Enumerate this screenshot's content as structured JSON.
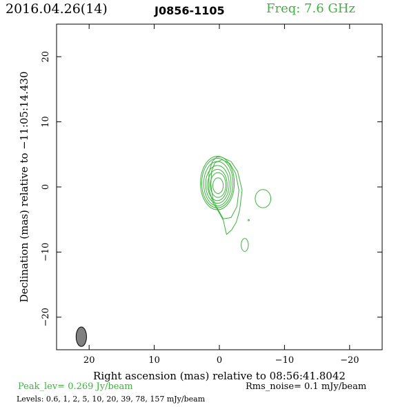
{
  "header": {
    "date": "2016.04.26(14)",
    "source": "J0856-1105",
    "freq": "Freq: 7.6 GHz"
  },
  "footer": {
    "peak": "Peak_lev=  0.269 Jy/beam",
    "rms": "Rms_noise=  0.1 mJy/beam",
    "levels": "Levels: 0.6,   1,   2,   5,  10,  20,  39,  78, 157 mJy/beam"
  },
  "colors": {
    "contour": "#3cb33c",
    "beam": "#808080",
    "axis": "#000000"
  },
  "chart_data": {
    "type": "contour",
    "title": "J0856-1105",
    "xlabel": "Right ascension (mas) relative to 08:56:41.8042",
    "ylabel": "Declination (mas) relative to −11:05:14.430",
    "xlim": [
      25,
      -25
    ],
    "ylim": [
      -25,
      25
    ],
    "xticks": [
      20,
      10,
      0,
      -10,
      -20
    ],
    "yticks": [
      20,
      10,
      0,
      -10,
      -20
    ],
    "xtick_labels": [
      "20",
      "10",
      "0",
      "−10",
      "−20"
    ],
    "ytick_labels": [
      "20",
      "10",
      "0",
      "−10",
      "−20"
    ],
    "contour_levels_mJy": [
      0.6,
      1,
      2,
      5,
      10,
      20,
      39,
      78,
      157
    ],
    "peak_Jy_per_beam": 0.269,
    "rms_mJy_per_beam": 0.1,
    "core_contours": [
      {
        "cx": 0.2,
        "cy": 0.2,
        "rx": 0.8,
        "ry": 1.2
      },
      {
        "cx": 0.2,
        "cy": 0.3,
        "rx": 1.2,
        "ry": 1.9
      },
      {
        "cx": 0.3,
        "cy": 0.3,
        "rx": 1.5,
        "ry": 2.4
      },
      {
        "cx": 0.3,
        "cy": 0.4,
        "rx": 1.8,
        "ry": 2.9
      },
      {
        "cx": 0.3,
        "cy": 0.5,
        "rx": 2.1,
        "ry": 3.4
      },
      {
        "cx": 0.3,
        "cy": 0.6,
        "rx": 2.4,
        "ry": 3.8
      },
      {
        "cx": 0.3,
        "cy": 0.6,
        "rx": 2.6,
        "ry": 4.1
      }
    ],
    "outer_contours": [
      [
        [
          -0.3,
          4.6
        ],
        [
          -1.8,
          3.9
        ],
        [
          -2.8,
          2.4
        ],
        [
          -3.5,
          -0.5
        ],
        [
          -3.1,
          -3.6
        ],
        [
          -2.6,
          -5.4
        ],
        [
          -1.9,
          -6.6
        ],
        [
          -1.1,
          -7.3
        ],
        [
          -0.6,
          -5.1
        ],
        [
          0.3,
          -3.5
        ],
        [
          1.0,
          -2.4
        ],
        [
          1.6,
          -0.4
        ],
        [
          1.6,
          2.2
        ],
        [
          1.1,
          3.9
        ],
        [
          0.4,
          4.6
        ],
        [
          -0.3,
          4.6
        ]
      ],
      [
        [
          -0.4,
          4.2
        ],
        [
          -1.6,
          3.6
        ],
        [
          -2.5,
          2.1
        ],
        [
          -3.0,
          -0.5
        ],
        [
          -2.7,
          -3.0
        ],
        [
          -1.8,
          -4.7
        ],
        [
          -0.6,
          -4.9
        ],
        [
          0.3,
          -3.3
        ],
        [
          1.0,
          -1.9
        ],
        [
          1.3,
          0.4
        ],
        [
          1.2,
          2.4
        ],
        [
          0.7,
          3.7
        ],
        [
          -0.4,
          4.2
        ]
      ]
    ],
    "islands": [
      {
        "cx": -6.7,
        "cy": -1.8,
        "rx": 1.2,
        "ry": 1.4
      },
      {
        "cx": -3.9,
        "cy": -8.9,
        "rx": 0.55,
        "ry": 1.0
      },
      {
        "cx": -4.5,
        "cy": -5.1,
        "rx": 0.1,
        "ry": 0.1
      }
    ],
    "beam": {
      "cx": 21.2,
      "cy": -23.0,
      "major_mas": 3.0,
      "minor_mas": 1.6,
      "pa_deg": 0
    }
  }
}
